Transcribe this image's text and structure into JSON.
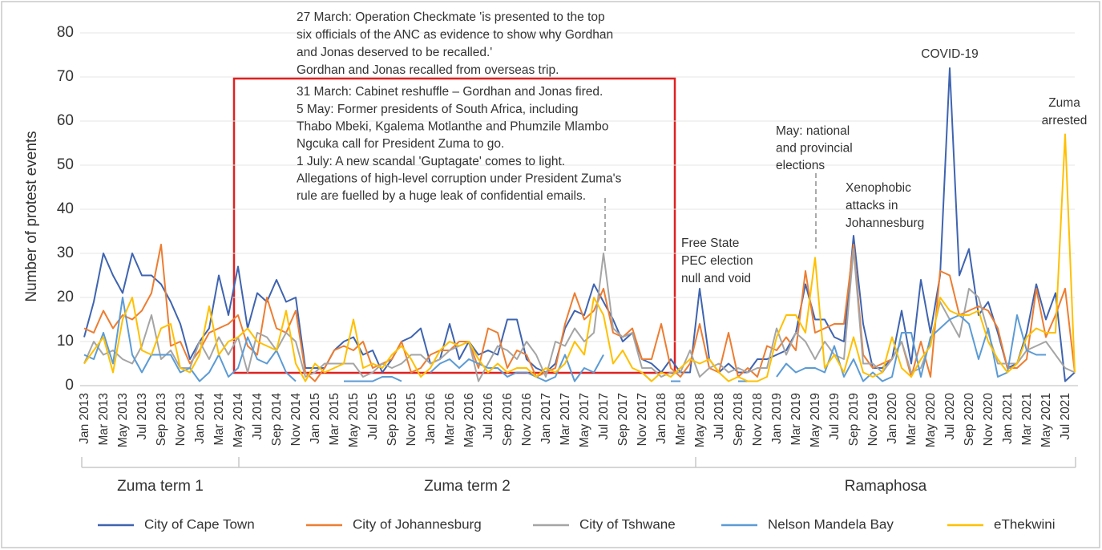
{
  "chart_data": {
    "type": "line",
    "y_label": "Number of protest events",
    "ylim": [
      0,
      80
    ],
    "yticks": [
      0,
      10,
      20,
      30,
      40,
      50,
      60,
      70,
      80
    ],
    "grid": true,
    "categories": [
      "Jan 2013",
      null,
      "Mar 2013",
      null,
      "May 2013",
      null,
      "Jul 2013",
      null,
      "Sep 2013",
      null,
      "Nov 2013",
      null,
      "Jan 2014",
      null,
      "Mar 2014",
      null,
      "May 2014",
      null,
      "Jul 2014",
      null,
      "Sep 2014",
      null,
      "Nov 2014",
      null,
      "Jan 2015",
      null,
      "Mar 2015",
      null,
      "May 2015",
      null,
      "Jul 2015",
      null,
      "Sep 2015",
      null,
      "Nov 2015",
      null,
      "Jan 2016",
      null,
      "Mar 2016",
      null,
      "May 2016",
      null,
      "Jul 2016",
      null,
      "Sep 2016",
      null,
      "Nov 2016",
      null,
      "Jan 2017",
      null,
      "Mar 2017",
      null,
      "May 2017",
      null,
      "Jul 2017",
      null,
      "Sep 2017",
      null,
      "Nov 2017",
      null,
      "Jan 2018",
      null,
      "Mar 2018",
      null,
      "May 2018",
      null,
      "Jul 2018",
      null,
      "Sep 2018",
      null,
      "Nov 2018",
      null,
      "Jan 2019",
      null,
      "Mar 2019",
      null,
      "May 2019",
      null,
      "Jul 2019",
      null,
      "Sep 2019",
      null,
      "Nov 2019",
      null,
      "Jan 2020",
      null,
      "Mar 2020",
      null,
      "May 2020",
      null,
      "Jul 2020",
      null,
      "Sep 2020",
      null,
      "Nov 2020",
      null,
      "Jan 2021",
      null,
      "Mar 2021",
      null,
      "May 2021",
      null,
      "Jul 2021",
      null
    ],
    "series": [
      {
        "name": "City of Cape Town",
        "color": "#3f64b0",
        "values": [
          11,
          19,
          30,
          25,
          21,
          30,
          25,
          25,
          23,
          19,
          14,
          6,
          10,
          13,
          25,
          16,
          27,
          13,
          21,
          19,
          24,
          19,
          20,
          4,
          4,
          4,
          8,
          10,
          11,
          7,
          8,
          3,
          6,
          10,
          11,
          13,
          5,
          6,
          14,
          6,
          10,
          7,
          8,
          7,
          15,
          15,
          6,
          4,
          3,
          5,
          13,
          17,
          16,
          23,
          19,
          15,
          10,
          12,
          6,
          5,
          3,
          6,
          3,
          3,
          22,
          6,
          3,
          5,
          3,
          3,
          6,
          6,
          7,
          8,
          12,
          23,
          15,
          15,
          11,
          10,
          34,
          14,
          4,
          4,
          6,
          17,
          5,
          24,
          12,
          25,
          72,
          25,
          31,
          16,
          19,
          12,
          4,
          5,
          12,
          23,
          15,
          21,
          1,
          3
        ]
      },
      {
        "name": "City of Johannesburg",
        "color": "#ed7d31",
        "values": [
          13,
          12,
          17,
          13,
          16,
          15,
          17,
          21,
          32,
          9,
          10,
          5,
          8,
          12,
          13,
          14,
          16,
          9,
          7,
          20,
          13,
          12,
          17,
          3,
          1,
          4,
          8,
          9,
          8,
          10,
          4,
          5,
          6,
          10,
          3,
          4,
          7,
          8,
          8,
          10,
          10,
          4,
          13,
          12,
          4,
          8,
          7,
          2,
          3,
          4,
          14,
          21,
          15,
          17,
          22,
          12,
          11,
          13,
          6,
          6,
          14,
          4,
          2,
          5,
          14,
          4,
          3,
          12,
          2,
          4,
          2,
          9,
          8,
          11,
          8,
          26,
          12,
          13,
          14,
          14,
          32,
          7,
          4,
          5,
          6,
          10,
          2,
          10,
          2,
          26,
          25,
          16,
          17,
          18,
          17,
          13,
          4,
          4,
          6,
          22,
          11,
          16,
          22,
          3
        ]
      },
      {
        "name": "City of Tshwane",
        "color": "#a5a5a5",
        "values": [
          5,
          10,
          7,
          8,
          6,
          5,
          9,
          16,
          6,
          8,
          4,
          4,
          10,
          6,
          11,
          7,
          11,
          3,
          12,
          11,
          8,
          12,
          10,
          2,
          3,
          5,
          5,
          5,
          5,
          2,
          3,
          5,
          4,
          5,
          7,
          7,
          5,
          6,
          8,
          9,
          10,
          1,
          5,
          9,
          8,
          6,
          10,
          7,
          2,
          10,
          9,
          13,
          10,
          12,
          30,
          13,
          11,
          12,
          4,
          4,
          2,
          3,
          3,
          8,
          2,
          4,
          5,
          3,
          4,
          3,
          4,
          4,
          13,
          7,
          12,
          10,
          6,
          10,
          7,
          6,
          31,
          5,
          5,
          3,
          6,
          10,
          3,
          4,
          10,
          19,
          15,
          11,
          22,
          20,
          12,
          5,
          5,
          5,
          8,
          9,
          10,
          7,
          4,
          3
        ]
      },
      {
        "name": "Nelson Mandela Bay",
        "color": "#5b9bd5",
        "values": [
          7,
          6,
          12,
          5,
          20,
          7,
          3,
          7,
          7,
          7,
          3,
          4,
          1,
          3,
          7,
          2,
          4,
          11,
          6,
          5,
          8,
          3,
          1,
          null,
          null,
          null,
          null,
          1,
          1,
          1,
          1,
          2,
          2,
          1,
          null,
          null,
          3,
          5,
          6,
          4,
          6,
          5,
          4,
          4,
          2,
          3,
          3,
          2,
          1,
          2,
          7,
          1,
          4,
          3,
          7,
          null,
          null,
          null,
          3,
          1,
          null,
          1,
          1,
          null,
          null,
          null,
          null,
          null,
          1,
          1,
          1,
          null,
          2,
          5,
          3,
          4,
          4,
          3,
          9,
          2,
          6,
          1,
          3,
          1,
          2,
          12,
          12,
          2,
          11,
          13,
          15,
          16,
          14,
          6,
          13,
          2,
          3,
          16,
          8,
          7,
          7,
          null,
          null,
          null
        ]
      },
      {
        "name": "eThekwini",
        "color": "#ffc000",
        "values": [
          5,
          8,
          11,
          3,
          15,
          20,
          8,
          7,
          13,
          14,
          4,
          3,
          7,
          18,
          7,
          10,
          11,
          13,
          10,
          9,
          8,
          17,
          5,
          1,
          5,
          3,
          4,
          5,
          15,
          4,
          5,
          4,
          7,
          9,
          6,
          2,
          4,
          8,
          10,
          9,
          10,
          6,
          3,
          5,
          3,
          4,
          4,
          2,
          4,
          3,
          5,
          10,
          7,
          20,
          16,
          5,
          8,
          4,
          3,
          1,
          3,
          2,
          4,
          6,
          5,
          6,
          3,
          1,
          2,
          1,
          1,
          2,
          11,
          16,
          16,
          12,
          29,
          4,
          7,
          3,
          11,
          3,
          2,
          3,
          11,
          4,
          2,
          6,
          9,
          20,
          17,
          16,
          16,
          17,
          10,
          6,
          3,
          5,
          11,
          13,
          12,
          12,
          57,
          3
        ]
      }
    ],
    "annotations": [
      {
        "lines": [
          "27 March: Operation Checkmate 'is presented to the top",
          "six officials of the ANC as evidence to show why Gordhan",
          "and Jonas deserved to be recalled.'"
        ]
      },
      {
        "lines": [
          "Gordhan and Jonas recalled from overseas trip."
        ]
      },
      {
        "lines": [
          "31 March: Cabinet reshuffle – Gordhan and Jonas fired."
        ]
      },
      {
        "lines": [
          "5  May: Former presidents of South Africa, including",
          "Thabo Mbeki, Kgalema Motlanthe and Phumzile Mlambo",
          "Ngcuka call for President Zuma to go."
        ]
      },
      {
        "lines": [
          "1 July: A new scandal 'Guptagate' comes to light.",
          "Allegations of high-level corruption under President Zuma's",
          "rule are fuelled by a huge leak of confidential emails."
        ]
      },
      {
        "lines": [
          "Free State",
          "PEC election",
          "null and void"
        ]
      },
      {
        "lines": [
          "May: national",
          "and provincial",
          "elections"
        ]
      },
      {
        "lines": [
          "Xenophobic",
          "attacks in",
          "Johannesburg"
        ]
      },
      {
        "lines": [
          "COVID-19"
        ]
      },
      {
        "lines": [
          "Zuma",
          "arrested"
        ]
      }
    ],
    "periods": [
      "Zuma term 1",
      "Zuma term 2",
      "Ramaphosa"
    ]
  }
}
